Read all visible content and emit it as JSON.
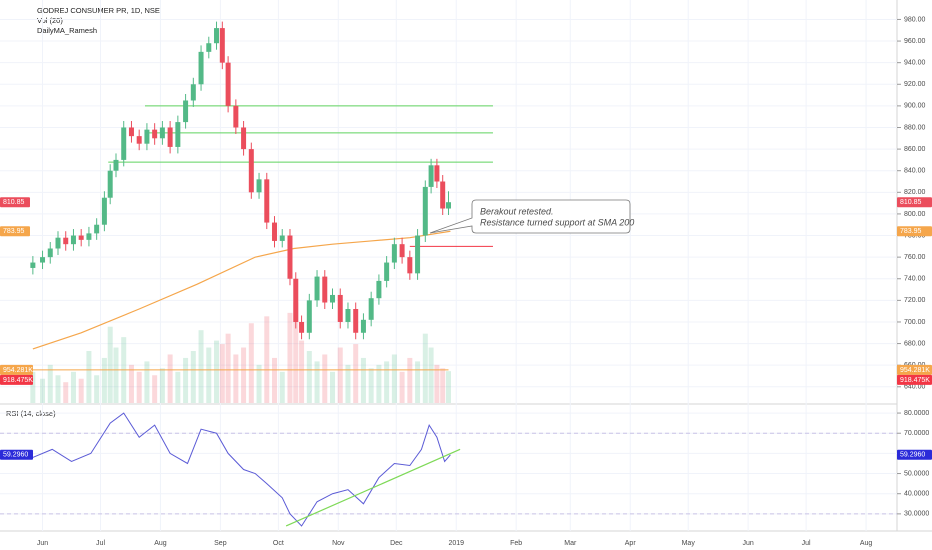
{
  "chart_data": {
    "type": "candlestick",
    "title": "GODREJ CONSUMER PR, 1D, NSE",
    "indicators": [
      "Vol (20)",
      "DailyMA_Ramesh"
    ],
    "xlim": [
      -22,
      442
    ],
    "xticks": [
      {
        "value": 0,
        "label": "Jun"
      },
      {
        "value": 30,
        "label": "Jul"
      },
      {
        "value": 61,
        "label": "Aug"
      },
      {
        "value": 92,
        "label": "Sep"
      },
      {
        "value": 122,
        "label": "Oct"
      },
      {
        "value": 153,
        "label": "Nov"
      },
      {
        "value": 183,
        "label": "Dec"
      },
      {
        "value": 214,
        "label": "2019"
      },
      {
        "value": 245,
        "label": "Feb"
      },
      {
        "value": 273,
        "label": "Mar"
      },
      {
        "value": 304,
        "label": "Apr"
      },
      {
        "value": 334,
        "label": "May"
      },
      {
        "value": 365,
        "label": "Jun"
      },
      {
        "value": 395,
        "label": "Jul"
      },
      {
        "value": 426,
        "label": "Aug"
      }
    ],
    "ylim": [
      625,
      998
    ],
    "yticks": [
      {
        "value": 640,
        "label": "640.00"
      },
      {
        "value": 660,
        "label": "660.00"
      },
      {
        "value": 680,
        "label": "680.00"
      },
      {
        "value": 700,
        "label": "700.00"
      },
      {
        "value": 720,
        "label": "720.00"
      },
      {
        "value": 740,
        "label": "740.00"
      },
      {
        "value": 760,
        "label": "760.00"
      },
      {
        "value": 780,
        "label": "780.00"
      },
      {
        "value": 800,
        "label": "800.00"
      },
      {
        "value": 820,
        "label": "820.00"
      },
      {
        "value": 840,
        "label": "840.00"
      },
      {
        "value": 860,
        "label": "860.00"
      },
      {
        "value": 880,
        "label": "880.00"
      },
      {
        "value": 900,
        "label": "900.00"
      },
      {
        "value": 920,
        "label": "920.00"
      },
      {
        "value": 940,
        "label": "940.00"
      },
      {
        "value": 960,
        "label": "960.00"
      },
      {
        "value": 980,
        "label": "980.00"
      }
    ],
    "grid": true,
    "up_color": "#53b987",
    "down_color": "#eb4d5c",
    "x": [
      -5,
      0,
      4,
      8,
      12,
      16,
      20,
      24,
      28,
      32,
      35,
      38,
      42,
      46,
      50,
      54,
      58,
      62,
      66,
      70,
      74,
      78,
      82,
      86,
      90,
      93,
      96,
      100,
      104,
      108,
      112,
      116,
      120,
      124,
      128,
      131,
      134,
      138,
      142,
      146,
      150,
      154,
      158,
      162,
      166,
      170,
      174,
      178,
      182,
      186,
      190,
      194,
      198,
      201,
      204,
      207,
      210
    ],
    "open": [
      750,
      755,
      760,
      768,
      778,
      772,
      780,
      776,
      782,
      790,
      815,
      840,
      850,
      880,
      872,
      865,
      878,
      870,
      880,
      862,
      885,
      905,
      920,
      950,
      958,
      972,
      940,
      900,
      880,
      860,
      820,
      832,
      792,
      775,
      780,
      740,
      700,
      690,
      720,
      742,
      718,
      725,
      700,
      712,
      690,
      702,
      722,
      738,
      755,
      772,
      760,
      745,
      780,
      825,
      845,
      830,
      805
    ],
    "high": [
      761,
      766,
      774,
      784,
      784,
      786,
      786,
      788,
      796,
      821,
      846,
      856,
      886,
      886,
      878,
      884,
      884,
      886,
      886,
      891,
      911,
      926,
      956,
      964,
      978,
      978,
      946,
      906,
      886,
      866,
      838,
      838,
      798,
      786,
      786,
      746,
      706,
      726,
      748,
      748,
      731,
      731,
      718,
      718,
      708,
      728,
      744,
      761,
      778,
      778,
      766,
      786,
      831,
      851,
      851,
      836,
      821
    ],
    "low": [
      744,
      749,
      754,
      762,
      766,
      766,
      770,
      770,
      776,
      784,
      809,
      834,
      844,
      866,
      859,
      859,
      864,
      864,
      856,
      856,
      879,
      899,
      914,
      944,
      952,
      934,
      894,
      874,
      854,
      814,
      814,
      786,
      769,
      769,
      734,
      694,
      684,
      684,
      714,
      712,
      712,
      694,
      694,
      684,
      684,
      696,
      716,
      732,
      749,
      754,
      739,
      739,
      774,
      819,
      824,
      799,
      799
    ],
    "close": [
      755,
      760,
      768,
      778,
      772,
      780,
      776,
      782,
      790,
      815,
      840,
      850,
      880,
      872,
      865,
      878,
      870,
      880,
      862,
      885,
      905,
      920,
      950,
      958,
      972,
      940,
      900,
      880,
      860,
      820,
      832,
      792,
      775,
      780,
      740,
      700,
      690,
      720,
      742,
      718,
      725,
      700,
      712,
      690,
      702,
      722,
      738,
      755,
      772,
      760,
      745,
      780,
      825,
      845,
      830,
      805,
      810.85
    ],
    "sma": {
      "color": "#f5a64b",
      "x": [
        -5,
        20,
        50,
        80,
        110,
        130,
        150,
        170,
        190,
        211
      ],
      "values": [
        675,
        690,
        712,
        735,
        760,
        768,
        772,
        775,
        778,
        783.95
      ]
    },
    "volume": {
      "ylim": [
        0,
        3000
      ],
      "color": "rgba(235,77,92,0.22)",
      "up_color": "rgba(83,185,135,0.22)",
      "values": [
        900,
        700,
        1100,
        800,
        600,
        900,
        700,
        1500,
        800,
        1300,
        2200,
        1600,
        1900,
        1100,
        900,
        1200,
        800,
        1000,
        1400,
        900,
        1300,
        1500,
        2100,
        1600,
        1800,
        1700,
        2000,
        1400,
        1600,
        2300,
        1100,
        2500,
        1300,
        900,
        2600,
        2900,
        1800,
        1500,
        1200,
        1400,
        900,
        1600,
        1100,
        1700,
        1300,
        1000,
        1100,
        1200,
        1400,
        900,
        1300,
        1200,
        2000,
        1600,
        1100,
        1000,
        918.475
      ],
      "last": {
        "value": 918.475,
        "label": "918.475K"
      },
      "ma": {
        "value": 954.281,
        "label": "954.281K",
        "color": "#f5a64b"
      }
    },
    "levels": [
      {
        "y": 900,
        "x": [
          53,
          233
        ],
        "color": "#5fd35f"
      },
      {
        "y": 875,
        "x": [
          53,
          233
        ],
        "color": "#5fd35f"
      },
      {
        "y": 848,
        "x": [
          34,
          233
        ],
        "color": "#5fd35f"
      },
      {
        "y": 770,
        "x": [
          190,
          233
        ],
        "color": "#f23645"
      }
    ],
    "annotation": {
      "text": [
        "Berakout retested.",
        "Resistance turned support at SMA 200"
      ],
      "color": "#3b3bd6"
    },
    "rsi": {
      "title": "RSI (14, close)",
      "color": "#5b5bd6",
      "ylim": [
        22,
        84
      ],
      "yticks": [
        {
          "value": 30,
          "label": "30.0000"
        },
        {
          "value": 40,
          "label": "40.0000"
        },
        {
          "value": 50,
          "label": "50.0000"
        },
        {
          "value": 60,
          "label": "60.0000"
        },
        {
          "value": 70,
          "label": "70.0000"
        },
        {
          "value": 80,
          "label": "80.0000"
        }
      ],
      "bands": [
        70,
        30
      ],
      "x": [
        -5,
        5,
        15,
        25,
        35,
        42,
        50,
        58,
        66,
        75,
        82,
        90,
        96,
        104,
        110,
        116,
        124,
        128,
        134,
        142,
        150,
        158,
        166,
        174,
        182,
        190,
        196,
        200,
        204,
        208,
        211
      ],
      "values": [
        58,
        62,
        56,
        60,
        75,
        80,
        68,
        74,
        60,
        55,
        72,
        70,
        60,
        52,
        50,
        45,
        38,
        30,
        24,
        36,
        40,
        42,
        35,
        48,
        55,
        54,
        62,
        74,
        68,
        56,
        59.296
      ],
      "last": {
        "value": 59.296,
        "label": "59.2960"
      },
      "trendline": {
        "color": "#7ed957",
        "x": [
          126,
          216
        ],
        "values": [
          24,
          62
        ]
      }
    }
  }
}
